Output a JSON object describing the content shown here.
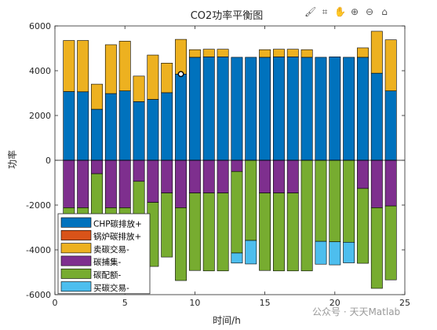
{
  "toolbar": {
    "icons": [
      "brush-icon",
      "data-tips-icon",
      "pan-icon",
      "zoom-in-icon",
      "zoom-out-icon",
      "home-icon"
    ],
    "glyphs": [
      "🖌",
      "⌗",
      "✋",
      "⊕",
      "⊖",
      "⌂"
    ]
  },
  "watermark": "公众号 · 天天Matlab",
  "chart_data": {
    "type": "bar",
    "stacked": true,
    "title": "CO2功率平衡图",
    "xlabel": "时间/h",
    "ylabel": "功率",
    "xlim": [
      0,
      25
    ],
    "ylim": [
      -6000,
      6000
    ],
    "xticks": [
      0,
      5,
      10,
      15,
      20,
      25
    ],
    "yticks": [
      -6000,
      -4000,
      -2000,
      0,
      2000,
      4000,
      6000
    ],
    "grid": false,
    "legend_position": "bottom-left",
    "categories": [
      1,
      2,
      3,
      4,
      5,
      6,
      7,
      8,
      9,
      10,
      11,
      12,
      13,
      14,
      15,
      16,
      17,
      18,
      19,
      20,
      21,
      22,
      23,
      24
    ],
    "series": [
      {
        "name": "CHP碳排放+",
        "color": "#0072BD",
        "sign": "positive",
        "values": [
          3070,
          3060,
          2280,
          2980,
          3100,
          2620,
          2720,
          3020,
          3850,
          4600,
          4620,
          4620,
          4600,
          4600,
          4600,
          4620,
          4620,
          4600,
          4600,
          4620,
          4600,
          4600,
          3890,
          3100
        ]
      },
      {
        "name": "锅炉碳排放+",
        "color": "#D95319",
        "sign": "positive",
        "values": [
          0,
          0,
          0,
          0,
          0,
          0,
          0,
          0,
          0,
          0,
          0,
          0,
          0,
          0,
          0,
          0,
          0,
          0,
          0,
          0,
          0,
          0,
          0,
          0
        ]
      },
      {
        "name": "卖碳交易-",
        "color": "#EDB120",
        "sign": "positive",
        "values": [
          2280,
          2290,
          1120,
          2180,
          2220,
          1140,
          1980,
          1320,
          1550,
          340,
          340,
          340,
          0,
          0,
          340,
          340,
          340,
          340,
          0,
          0,
          0,
          420,
          1870,
          2280
        ]
      },
      {
        "name": "碳捕集-",
        "color": "#7E2F8E",
        "sign": "negative",
        "values": [
          -2120,
          -2120,
          -600,
          -2120,
          -2120,
          -940,
          -1880,
          -1460,
          -2120,
          -1460,
          -1460,
          -1460,
          -500,
          0,
          -1460,
          -1460,
          -1460,
          0,
          0,
          0,
          0,
          -1260,
          -2120,
          -2040
        ]
      },
      {
        "name": "碳配额-",
        "color": "#77AC30",
        "sign": "negative",
        "values": [
          -2440,
          -2440,
          -3780,
          -2440,
          -2440,
          -3720,
          -2860,
          -2860,
          -3250,
          -3460,
          -3480,
          -3480,
          -3640,
          -3580,
          -3460,
          -3480,
          -3480,
          -4940,
          -3620,
          -3640,
          -3660,
          -3340,
          -3600,
          -3300
        ]
      },
      {
        "name": "买碳交易-",
        "color": "#4DBEEE",
        "sign": "negative",
        "values": [
          0,
          0,
          0,
          0,
          0,
          0,
          0,
          0,
          0,
          0,
          0,
          0,
          -450,
          -1050,
          0,
          0,
          0,
          0,
          -1020,
          -1030,
          -920,
          0,
          0,
          0
        ]
      }
    ],
    "annotation": {
      "x": 9,
      "y": 3850
    }
  }
}
